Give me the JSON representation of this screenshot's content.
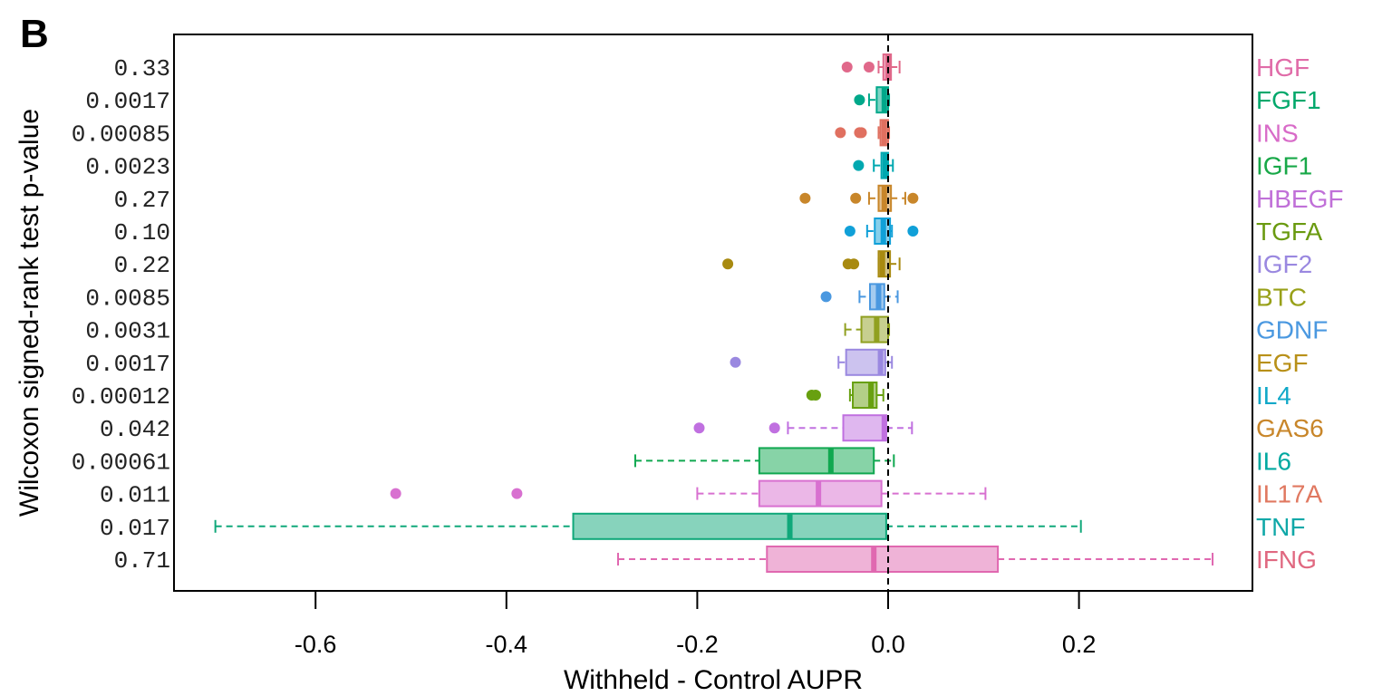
{
  "panel_label": "B",
  "chart_data": {
    "type": "boxplot",
    "orientation": "horizontal",
    "xlabel": "Withheld - Control AUPR",
    "ylabel": "Wilcoxon signed-rank test p-value",
    "xlim": [
      -0.75,
      0.38
    ],
    "xticks": [
      -0.6,
      -0.4,
      -0.2,
      0.0,
      0.2
    ],
    "xtick_labels": [
      "-0.6",
      "-0.4",
      "-0.2",
      "0.0",
      "0.2"
    ],
    "reference_line": 0.0,
    "categories": [
      {
        "name": "HGF",
        "pvalue": "0.33",
        "color": "#E0688A",
        "label_color": "#E06BA8",
        "whisker_low": -0.01,
        "q1": -0.005,
        "median": 0.0,
        "q3": 0.003,
        "whisker_high": 0.012,
        "outliers": [
          -0.043,
          -0.02
        ]
      },
      {
        "name": "FGF1",
        "pvalue": "0.0017",
        "color": "#00A88A",
        "label_color": "#00A86B",
        "whisker_low": -0.02,
        "q1": -0.012,
        "median": -0.004,
        "q3": 0.0,
        "whisker_high": 0.001,
        "outliers": [
          -0.03
        ]
      },
      {
        "name": "INS",
        "pvalue": "0.00085",
        "color": "#E07060",
        "label_color": "#D86BC8",
        "whisker_low": -0.01,
        "q1": -0.008,
        "median": -0.004,
        "q3": 0.0,
        "whisker_high": 0.001,
        "outliers": [
          -0.05,
          -0.03,
          -0.028
        ]
      },
      {
        "name": "IGF1",
        "pvalue": "0.0023",
        "color": "#00A8B0",
        "label_color": "#18A848",
        "whisker_low": -0.015,
        "q1": -0.007,
        "median": -0.003,
        "q3": 0.0,
        "whisker_high": 0.005,
        "outliers": [
          -0.031
        ]
      },
      {
        "name": "HBEGF",
        "pvalue": "0.27",
        "color": "#C8862A",
        "label_color": "#C070D8",
        "whisker_low": -0.02,
        "q1": -0.01,
        "median": -0.004,
        "q3": 0.003,
        "whisker_high": 0.018,
        "outliers": [
          -0.087,
          -0.034,
          0.026
        ]
      },
      {
        "name": "TGFA",
        "pvalue": "0.10",
        "color": "#10A0D8",
        "label_color": "#6A9A10",
        "whisker_low": -0.022,
        "q1": -0.014,
        "median": -0.005,
        "q3": 0.002,
        "whisker_high": 0.004,
        "outliers": [
          -0.04,
          0.026
        ]
      },
      {
        "name": "IGF2",
        "pvalue": "0.22",
        "color": "#A88A10",
        "label_color": "#9A88E0",
        "whisker_low": -0.01,
        "q1": -0.01,
        "median": -0.006,
        "q3": 0.002,
        "whisker_high": 0.012,
        "outliers": [
          -0.168,
          -0.042,
          -0.036
        ]
      },
      {
        "name": "BTC",
        "pvalue": "0.0085",
        "color": "#4A98E0",
        "label_color": "#98A018",
        "whisker_low": -0.03,
        "q1": -0.019,
        "median": -0.01,
        "q3": -0.004,
        "whisker_high": 0.01,
        "outliers": [
          -0.065
        ]
      },
      {
        "name": "GDNF",
        "pvalue": "0.0031",
        "color": "#90A020",
        "label_color": "#4A98E0",
        "whisker_low": -0.045,
        "q1": -0.028,
        "median": -0.012,
        "q3": 0.0,
        "whisker_high": 0.001,
        "outliers": []
      },
      {
        "name": "EGF",
        "pvalue": "0.0017",
        "color": "#9A88E0",
        "label_color": "#B89018",
        "whisker_low": -0.052,
        "q1": -0.044,
        "median": -0.008,
        "q3": -0.003,
        "whisker_high": 0.004,
        "outliers": [
          -0.16
        ]
      },
      {
        "name": "IL4",
        "pvalue": "0.00012",
        "color": "#68A010",
        "label_color": "#10A8C8",
        "whisker_low": -0.04,
        "q1": -0.037,
        "median": -0.018,
        "q3": -0.012,
        "whisker_high": -0.005,
        "outliers": [
          -0.08,
          -0.076
        ]
      },
      {
        "name": "GAS6",
        "pvalue": "0.042",
        "color": "#C070E0",
        "label_color": "#C8862A",
        "whisker_low": -0.105,
        "q1": -0.047,
        "median": -0.004,
        "q3": -0.002,
        "whisker_high": 0.025,
        "outliers": [
          -0.198,
          -0.119
        ]
      },
      {
        "name": "IL6",
        "pvalue": "0.00061",
        "color": "#10A850",
        "label_color": "#00A8A0",
        "whisker_low": -0.265,
        "q1": -0.135,
        "median": -0.06,
        "q3": -0.015,
        "whisker_high": 0.006,
        "outliers": []
      },
      {
        "name": "IL17A",
        "pvalue": "0.011",
        "color": "#D870D0",
        "label_color": "#E07860",
        "whisker_low": -0.2,
        "q1": -0.135,
        "median": -0.073,
        "q3": -0.007,
        "whisker_high": 0.102,
        "outliers": [
          -0.516,
          -0.389
        ]
      },
      {
        "name": "TNF",
        "pvalue": "0.017",
        "color": "#10A87A",
        "label_color": "#10A8A8",
        "whisker_low": -0.705,
        "q1": -0.33,
        "median": -0.103,
        "q3": -0.002,
        "whisker_high": 0.202,
        "outliers": []
      },
      {
        "name": "IFNG",
        "pvalue": "0.71",
        "color": "#E068B0",
        "label_color": "#E06880",
        "whisker_low": -0.283,
        "q1": -0.127,
        "median": -0.015,
        "q3": 0.115,
        "whisker_high": 0.34,
        "outliers": []
      }
    ]
  }
}
